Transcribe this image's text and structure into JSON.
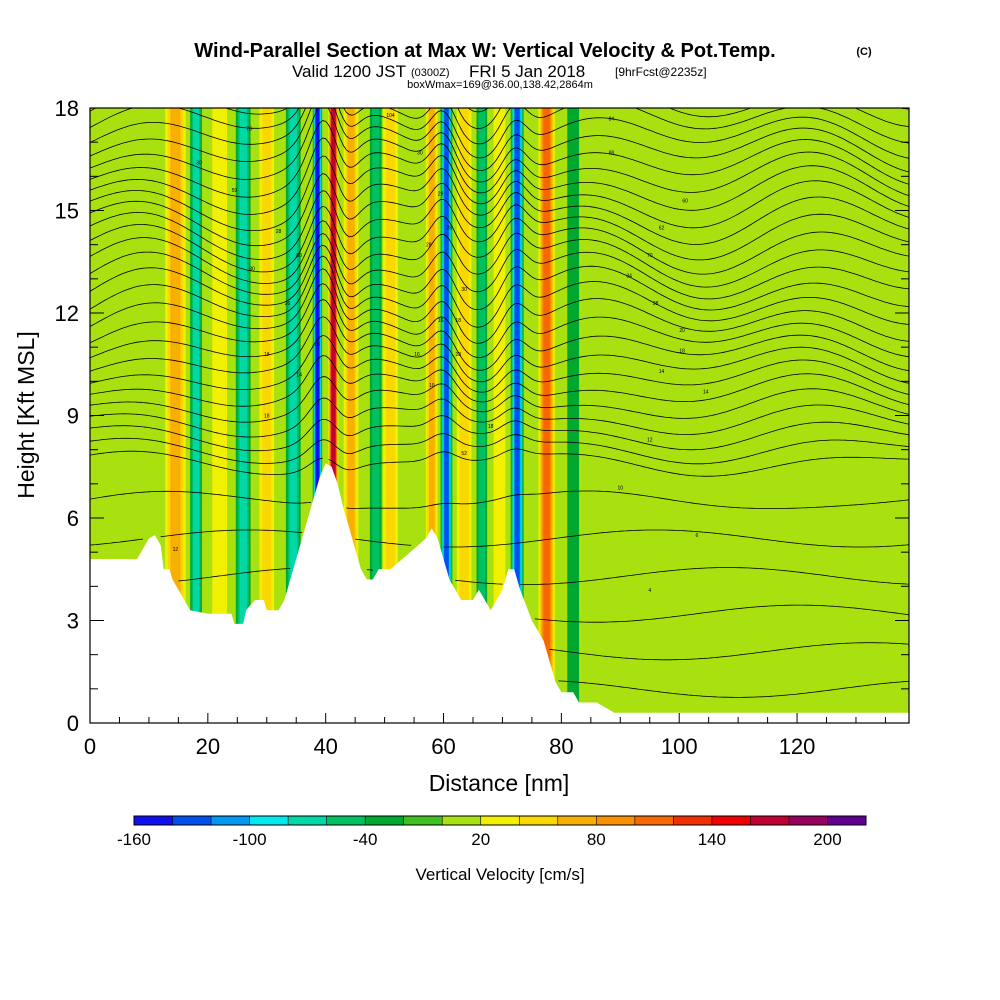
{
  "title": {
    "main": "Wind-Parallel Section at Max W: Vertical Velocity & Pot.Temp.",
    "copyright": "(C)",
    "valid_prefix": "Valid 1200 JST",
    "valid_z": "(0300Z)",
    "valid_suffix": "FRI 5 Jan 2018",
    "forecast": "[9hrFcst@2235z]",
    "box_info": "boxWmax=169@36.00,138.42,2864m"
  },
  "chart_data": {
    "type": "heatmap",
    "xlabel": "Distance [nm]",
    "ylabel": "Height [Kft MSL]",
    "xlim": [
      0,
      139
    ],
    "ylim": [
      0,
      18
    ],
    "x_ticks": [
      0,
      20,
      40,
      60,
      80,
      100,
      120
    ],
    "y_ticks": [
      0,
      3,
      6,
      9,
      12,
      15,
      18
    ],
    "colorbar": {
      "label": "Vertical Velocity [cm/s]",
      "tick_labels": [
        "-160",
        "-100",
        "-40",
        "20",
        "80",
        "140",
        "200"
      ],
      "tick_values": [
        -160,
        -100,
        -40,
        20,
        80,
        140,
        200
      ],
      "bin_edges": [
        -160,
        -140,
        -120,
        -100,
        -80,
        -60,
        -40,
        -20,
        0,
        20,
        40,
        60,
        80,
        100,
        120,
        140,
        160,
        180,
        200,
        220
      ],
      "colors": [
        "#1010f0",
        "#0050f0",
        "#0098f0",
        "#00e8f0",
        "#00d8a8",
        "#00c060",
        "#00a830",
        "#40c020",
        "#a8e010",
        "#f0f000",
        "#f8d800",
        "#f8b000",
        "#f89000",
        "#f86800",
        "#f03000",
        "#f00000",
        "#c00030",
        "#980060",
        "#600090"
      ]
    },
    "terrain_kft": [
      [
        0,
        4.8
      ],
      [
        8,
        4.8
      ],
      [
        9,
        5.1
      ],
      [
        10,
        5.4
      ],
      [
        11,
        5.5
      ],
      [
        12,
        5.2
      ],
      [
        12.5,
        4.5
      ],
      [
        13.5,
        4.5
      ],
      [
        14,
        4.2
      ],
      [
        15,
        3.9
      ],
      [
        16,
        3.6
      ],
      [
        17,
        3.3
      ],
      [
        20,
        3.2
      ],
      [
        24,
        3.2
      ],
      [
        24.5,
        2.9
      ],
      [
        26,
        2.9
      ],
      [
        26.5,
        3.3
      ],
      [
        28,
        3.6
      ],
      [
        29.5,
        3.6
      ],
      [
        30,
        3.3
      ],
      [
        32,
        3.3
      ],
      [
        33,
        3.6
      ],
      [
        34,
        4.2
      ],
      [
        35,
        4.8
      ],
      [
        36,
        5.4
      ],
      [
        37,
        6.0
      ],
      [
        38,
        6.6
      ],
      [
        39,
        7.2
      ],
      [
        40,
        7.6
      ],
      [
        41,
        7.5
      ],
      [
        42,
        7.0
      ],
      [
        43,
        6.3
      ],
      [
        44,
        5.7
      ],
      [
        45,
        5.1
      ],
      [
        46,
        4.5
      ],
      [
        47,
        4.2
      ],
      [
        48,
        4.2
      ],
      [
        49,
        4.5
      ],
      [
        51,
        4.5
      ],
      [
        53,
        4.8
      ],
      [
        55,
        5.1
      ],
      [
        57,
        5.4
      ],
      [
        58,
        5.7
      ],
      [
        59,
        5.4
      ],
      [
        60,
        4.8
      ],
      [
        61,
        4.2
      ],
      [
        62,
        3.9
      ],
      [
        63,
        3.6
      ],
      [
        65,
        3.6
      ],
      [
        66,
        3.9
      ],
      [
        67,
        3.6
      ],
      [
        68,
        3.3
      ],
      [
        69,
        3.6
      ],
      [
        70,
        3.9
      ],
      [
        71,
        4.5
      ],
      [
        72,
        4.5
      ],
      [
        73,
        3.9
      ],
      [
        75,
        3.0
      ],
      [
        77,
        2.4
      ],
      [
        78,
        1.8
      ],
      [
        79,
        1.2
      ],
      [
        80,
        0.9
      ],
      [
        82,
        0.9
      ],
      [
        83,
        0.6
      ],
      [
        86,
        0.6
      ],
      [
        89,
        0.3
      ],
      [
        95,
        0.3
      ],
      [
        139,
        0.3
      ]
    ],
    "velocity_columns": [
      {
        "x": 14.5,
        "w": 3.5,
        "v": 60
      },
      {
        "x": 18,
        "w": 2.0,
        "v": -60
      },
      {
        "x": 22,
        "w": 2.5,
        "v": 20
      },
      {
        "x": 26,
        "w": 2.5,
        "v": -60
      },
      {
        "x": 30,
        "w": 2.5,
        "v": 50
      },
      {
        "x": 34.5,
        "w": 2.5,
        "v": -60
      },
      {
        "x": 38.6,
        "w": 1.6,
        "v": -140
      },
      {
        "x": 41.3,
        "w": 1.7,
        "v": 160
      },
      {
        "x": 44.3,
        "w": 2.5,
        "v": 60
      },
      {
        "x": 48.5,
        "w": 2.0,
        "v": -50
      },
      {
        "x": 51,
        "w": 2.5,
        "v": 40
      },
      {
        "x": 54.5,
        "w": 2.5,
        "v": 10
      },
      {
        "x": 58,
        "w": 2.0,
        "v": 60
      },
      {
        "x": 60.5,
        "w": 2.0,
        "v": -120
      },
      {
        "x": 63.5,
        "w": 2.5,
        "v": 40
      },
      {
        "x": 66.5,
        "w": 1.8,
        "v": -40
      },
      {
        "x": 69.5,
        "w": 2.0,
        "v": 30
      },
      {
        "x": 72.5,
        "w": 2.2,
        "v": -120
      },
      {
        "x": 77.5,
        "w": 2.8,
        "v": 100
      },
      {
        "x": 82,
        "w": 2.0,
        "v": -20
      }
    ],
    "isentrope_labels": [
      {
        "x": 27,
        "y": 17.4,
        "text": "70"
      },
      {
        "x": 18.5,
        "y": 16.4,
        "text": "30"
      },
      {
        "x": 24.5,
        "y": 15.6,
        "text": "59"
      },
      {
        "x": 32,
        "y": 14.4,
        "text": "28"
      },
      {
        "x": 35.5,
        "y": 13.7,
        "text": "60"
      },
      {
        "x": 27.5,
        "y": 13.3,
        "text": "30"
      },
      {
        "x": 33.5,
        "y": 12.3,
        "text": "26"
      },
      {
        "x": 38.5,
        "y": 11.1,
        "text": "16"
      },
      {
        "x": 30,
        "y": 10.8,
        "text": "18"
      },
      {
        "x": 35.5,
        "y": 10.2,
        "text": "14"
      },
      {
        "x": 30,
        "y": 9.0,
        "text": "18"
      },
      {
        "x": 51,
        "y": 17.8,
        "text": "104"
      },
      {
        "x": 56,
        "y": 16.7,
        "text": "30"
      },
      {
        "x": 59.5,
        "y": 15.5,
        "text": "29"
      },
      {
        "x": 61,
        "y": 14.5,
        "text": "28"
      },
      {
        "x": 57.5,
        "y": 14.0,
        "text": "28"
      },
      {
        "x": 63.5,
        "y": 12.7,
        "text": "30"
      },
      {
        "x": 59.5,
        "y": 11.8,
        "text": "16"
      },
      {
        "x": 62.5,
        "y": 11.8,
        "text": "18"
      },
      {
        "x": 55.5,
        "y": 10.8,
        "text": "16"
      },
      {
        "x": 62.5,
        "y": 10.8,
        "text": "28"
      },
      {
        "x": 58,
        "y": 9.9,
        "text": "10"
      },
      {
        "x": 68,
        "y": 8.7,
        "text": "18"
      },
      {
        "x": 63.5,
        "y": 7.9,
        "text": "52"
      },
      {
        "x": 88.5,
        "y": 17.7,
        "text": "84"
      },
      {
        "x": 88.5,
        "y": 16.7,
        "text": "88"
      },
      {
        "x": 101,
        "y": 15.3,
        "text": "60"
      },
      {
        "x": 97,
        "y": 14.5,
        "text": "62"
      },
      {
        "x": 95,
        "y": 13.7,
        "text": "70"
      },
      {
        "x": 91.5,
        "y": 13.1,
        "text": "34"
      },
      {
        "x": 96,
        "y": 12.3,
        "text": "28"
      },
      {
        "x": 100.5,
        "y": 11.5,
        "text": "20"
      },
      {
        "x": 100.5,
        "y": 10.9,
        "text": "18"
      },
      {
        "x": 97,
        "y": 10.3,
        "text": "14"
      },
      {
        "x": 104.5,
        "y": 9.7,
        "text": "14"
      },
      {
        "x": 95,
        "y": 8.3,
        "text": "12"
      },
      {
        "x": 90,
        "y": 6.9,
        "text": "10"
      },
      {
        "x": 103,
        "y": 5.5,
        "text": "6"
      },
      {
        "x": 95,
        "y": 3.9,
        "text": "4"
      },
      {
        "x": 14.5,
        "y": 5.1,
        "text": "12"
      }
    ]
  }
}
